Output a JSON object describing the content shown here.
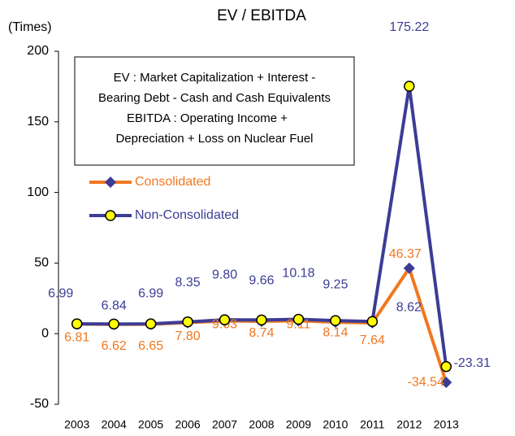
{
  "chart_data": {
    "type": "line",
    "title": "EV / EBITDA",
    "y_label": "(Times)",
    "annotation": [
      "EV : Market Capitalization + Interest -",
      "Bearing Debt - Cash and Cash Equivalents",
      "EBITDA : Operating Income +",
      "Depreciation + Loss on Nuclear  Fuel"
    ],
    "categories": [
      "2003",
      "2004",
      "2005",
      "2006",
      "2007",
      "2008",
      "2009",
      "2010",
      "2011",
      "2012",
      "2013"
    ],
    "series": [
      {
        "name": "Consolidated",
        "color": "#f07820",
        "marker": "diamond",
        "marker_color": "#3c3c96",
        "values": [
          6.81,
          6.62,
          6.65,
          7.8,
          9.03,
          8.74,
          9.11,
          8.14,
          7.64,
          46.37,
          -34.54
        ],
        "value_labels": [
          "6.81",
          "6.62",
          "6.65",
          "7.80",
          "9.03",
          "8.74",
          "9.11",
          "8.14",
          "7.64",
          "46.37",
          "-34.54"
        ]
      },
      {
        "name": "Non-Consolidated",
        "color": "#3c3c96",
        "marker": "circle",
        "marker_color": "#ffff00",
        "values": [
          6.99,
          6.84,
          6.99,
          8.35,
          9.8,
          9.66,
          10.18,
          9.25,
          8.62,
          175.22,
          -23.31
        ],
        "value_labels": [
          "6.99",
          "6.84",
          "6.99",
          "8.35",
          "9.80",
          "9.66",
          "10.18",
          "9.25",
          "8.62",
          "175.22",
          "-23.31"
        ]
      }
    ],
    "ylim": [
      -50,
      200
    ],
    "yticks": [
      -50,
      0,
      50,
      100,
      150,
      200
    ],
    "grid": false
  }
}
